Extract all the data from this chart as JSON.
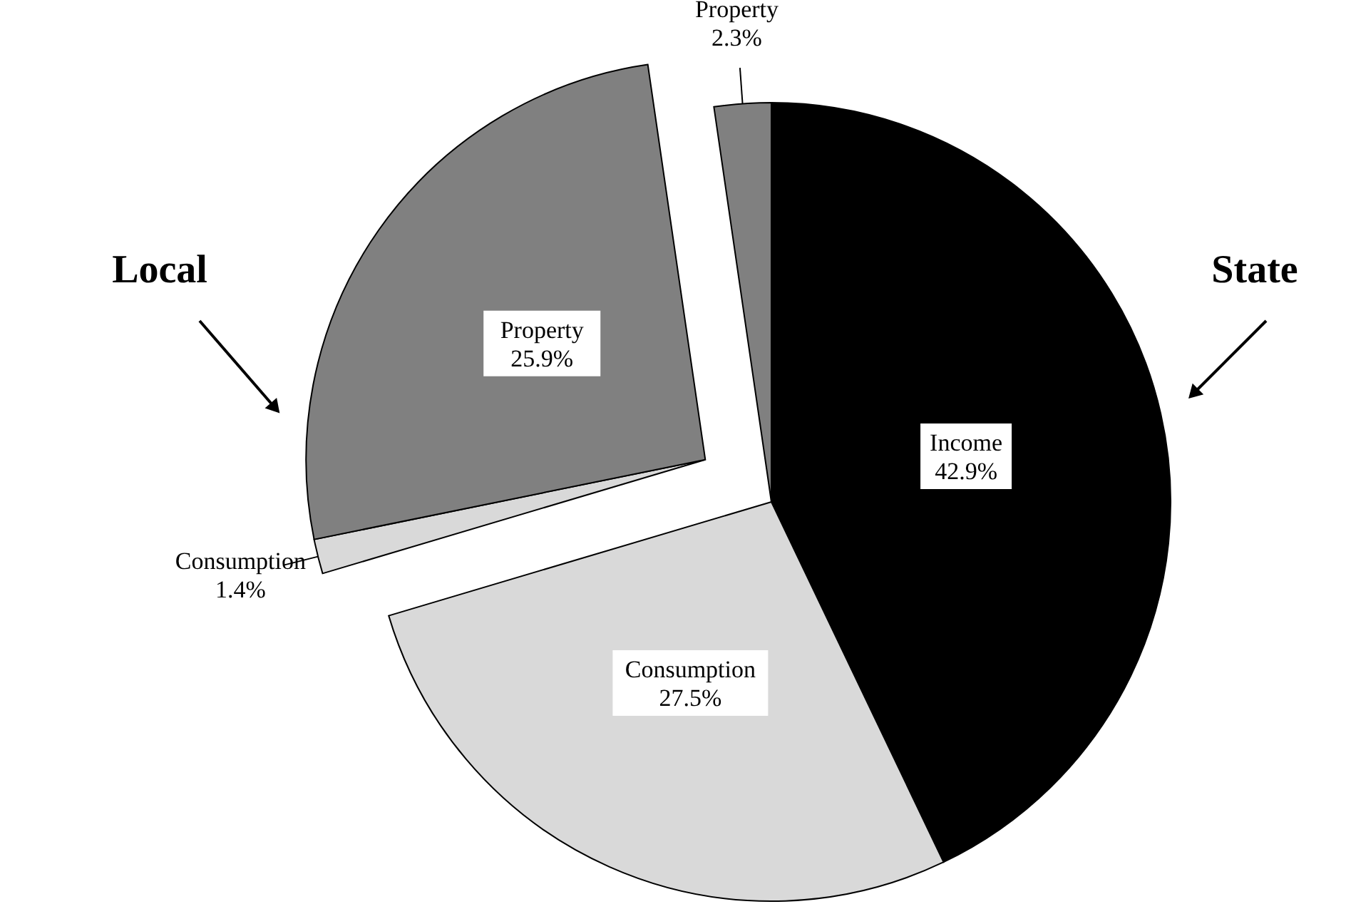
{
  "chart_data": {
    "type": "pie",
    "categories": [
      "Income",
      "Consumption",
      "Consumption",
      "Property",
      "Property"
    ],
    "values": [
      42.9,
      27.5,
      1.4,
      25.9,
      2.3
    ],
    "colors": [
      "#000000",
      "#d9d9d9",
      "#d9d9d9",
      "#808080",
      "#808080"
    ],
    "value_labels": [
      "42.9%",
      "27.5%",
      "1.4%",
      "25.9%",
      "2.3%"
    ],
    "annotations": [
      "Local",
      "State"
    ]
  }
}
